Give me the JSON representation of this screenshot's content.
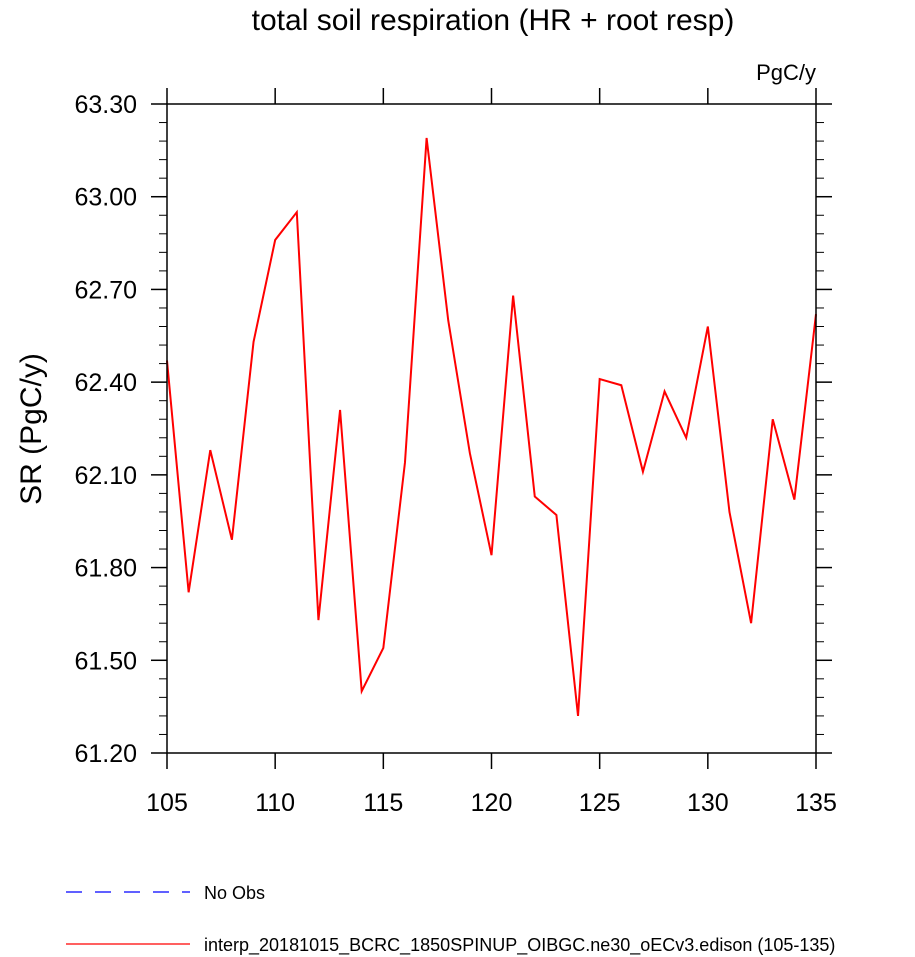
{
  "chart_data": {
    "type": "line",
    "title": "total soil respiration (HR + root resp)",
    "units_label": "PgC/y",
    "xlabel": "",
    "ylabel": "SR  (PgC/y)",
    "xlim": [
      105,
      135
    ],
    "ylim": [
      61.2,
      63.3
    ],
    "x_ticks": [
      "105",
      "110",
      "115",
      "120",
      "125",
      "130",
      "135"
    ],
    "y_ticks": [
      "61.20",
      "61.50",
      "61.80",
      "62.10",
      "62.40",
      "62.70",
      "63.00",
      "63.30"
    ],
    "grid": false,
    "legend_position": "bottom",
    "series": [
      {
        "name": "No Obs",
        "color": "#0000ff",
        "style": "dashed",
        "x": [],
        "y": []
      },
      {
        "name": "interp_20181015_BCRC_1850SPINUP_OIBGC.ne30_oECv3.edison (105-135)",
        "color": "#ff0000",
        "style": "solid",
        "x": [
          105,
          106,
          107,
          108,
          109,
          110,
          111,
          112,
          113,
          114,
          115,
          116,
          117,
          118,
          119,
          120,
          121,
          122,
          123,
          124,
          125,
          126,
          127,
          128,
          129,
          130,
          131,
          132,
          133,
          134,
          135
        ],
        "y": [
          62.47,
          61.72,
          62.18,
          61.89,
          62.53,
          62.86,
          62.95,
          61.63,
          62.31,
          61.4,
          61.54,
          62.14,
          63.19,
          62.6,
          62.17,
          61.84,
          62.68,
          62.03,
          61.97,
          61.32,
          62.41,
          62.39,
          62.11,
          62.37,
          62.22,
          62.58,
          61.98,
          61.62,
          62.28,
          62.02,
          62.62
        ]
      }
    ]
  }
}
